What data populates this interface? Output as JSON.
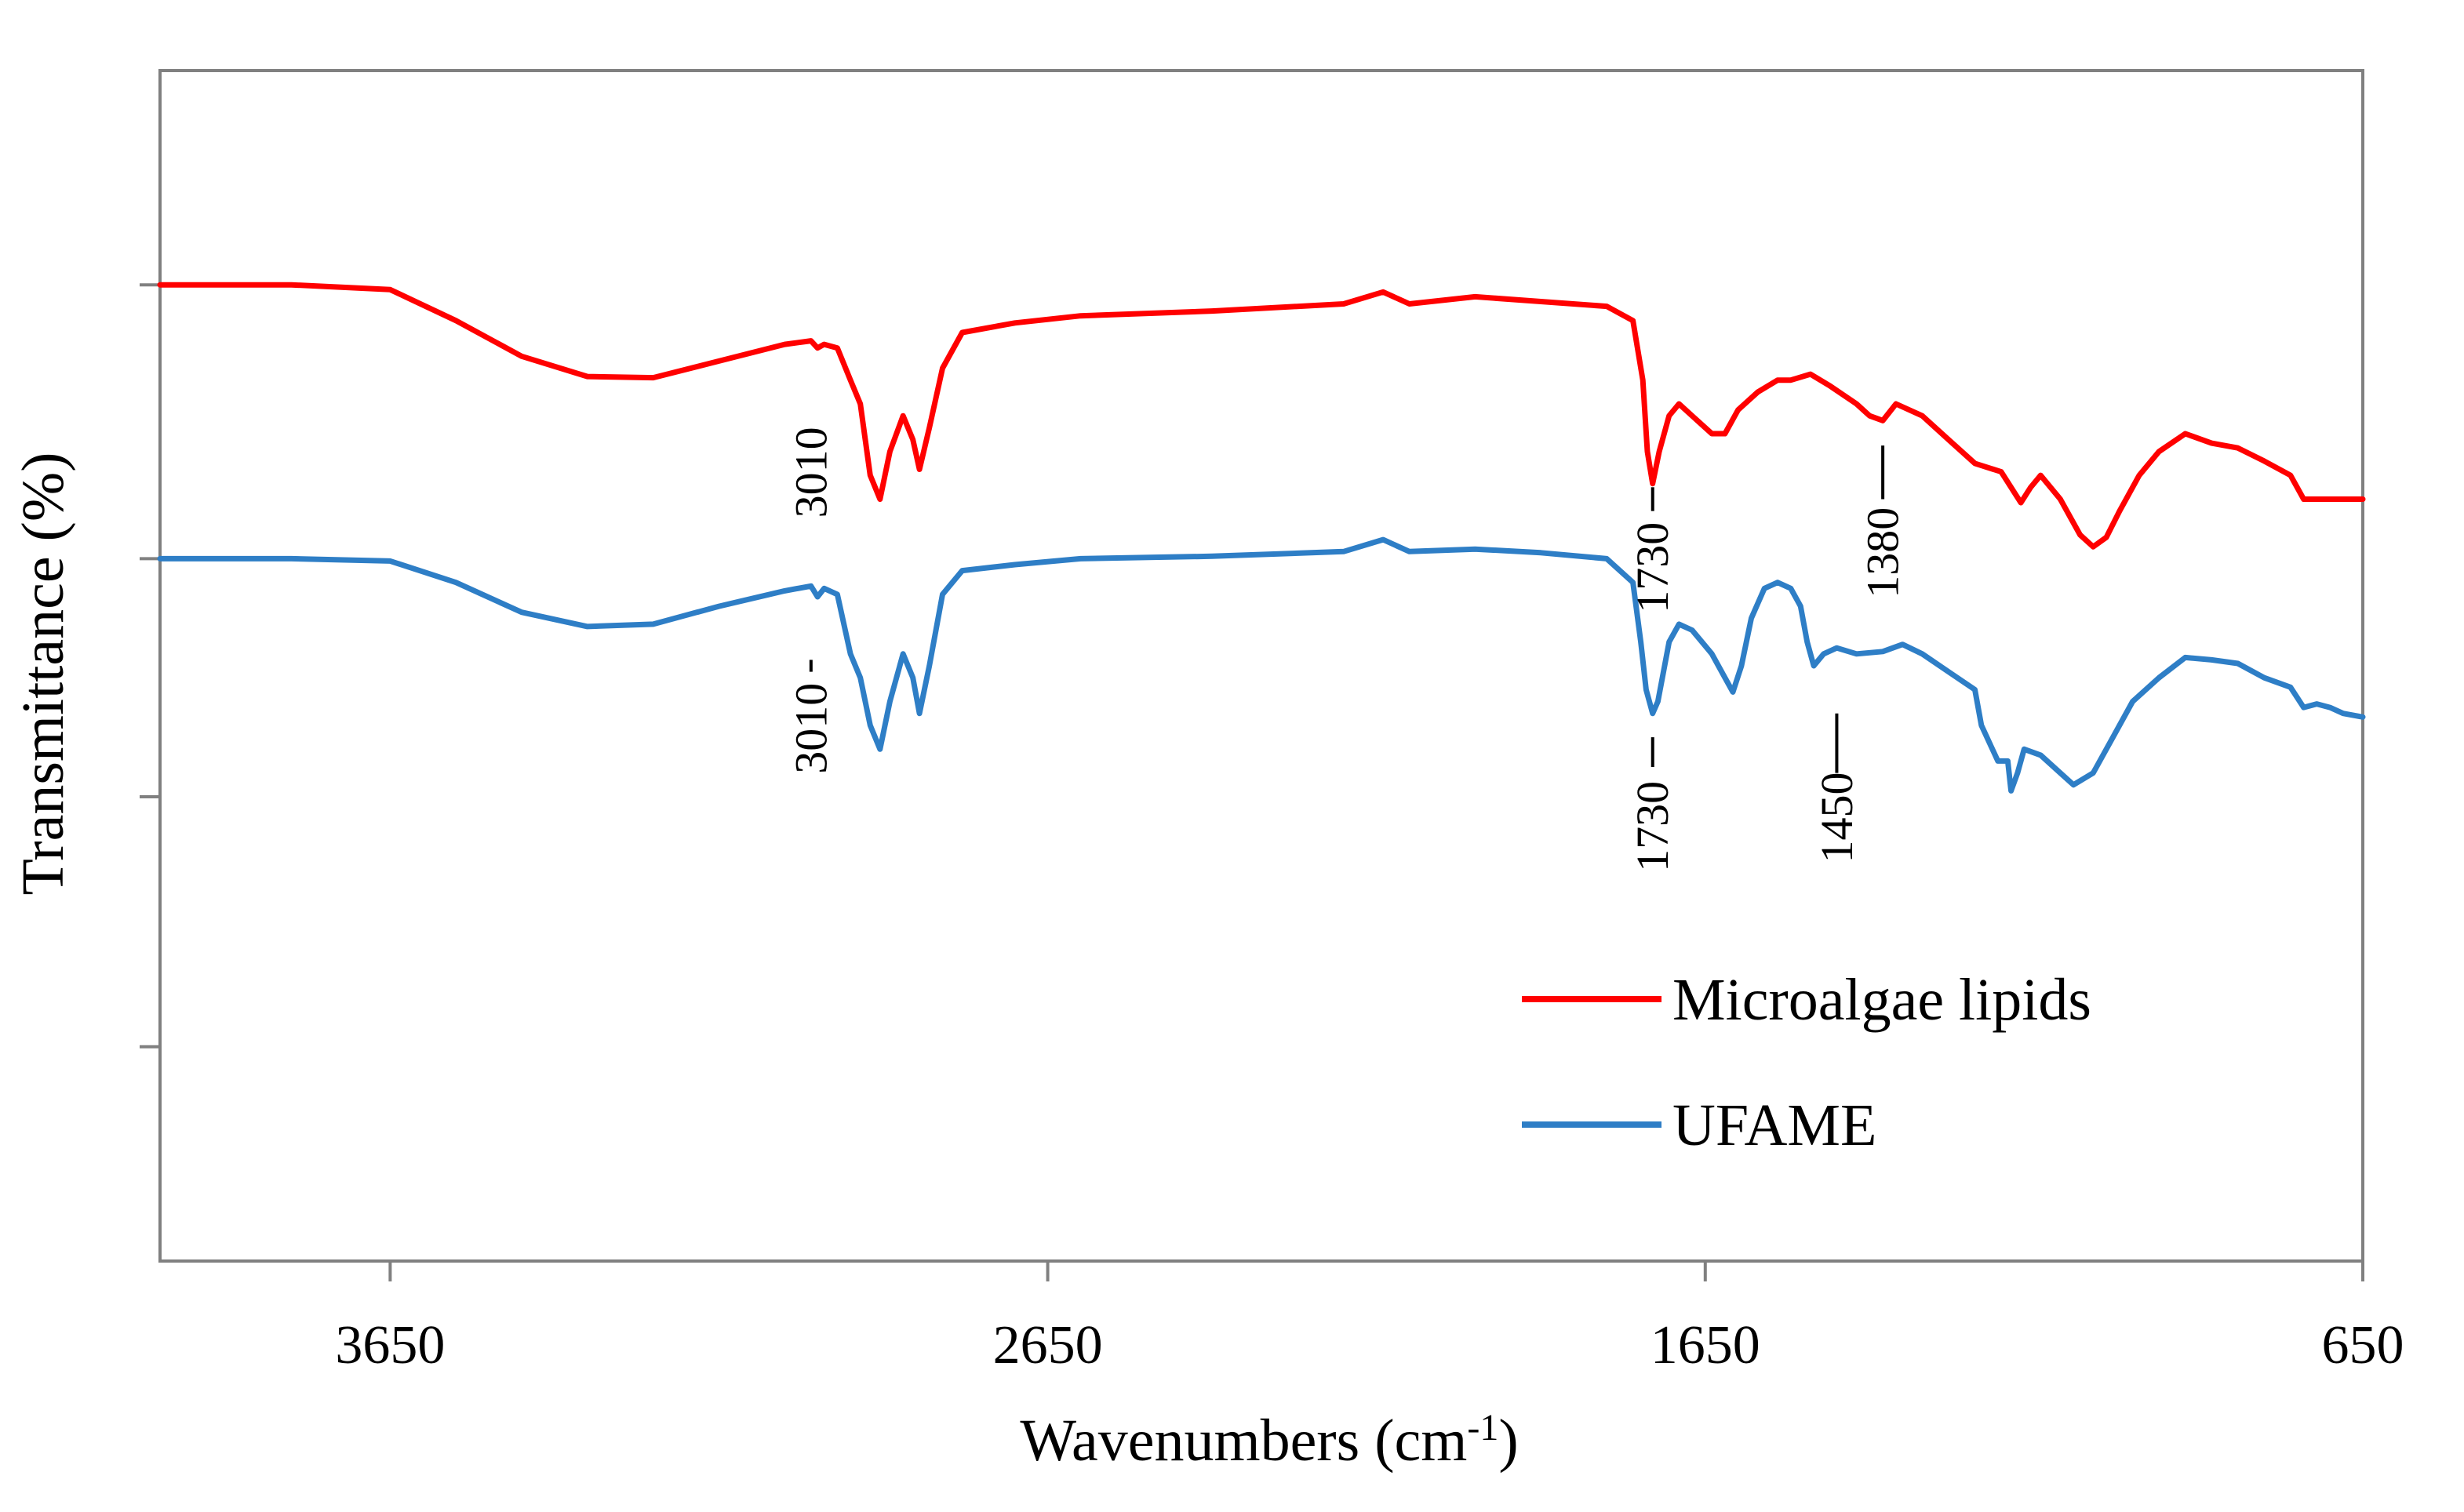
{
  "chart_data": {
    "type": "line",
    "title": "",
    "xlabel": "Wavenumbers (cm",
    "xlabel_sup": "-1",
    "xlabel_suffix": ")",
    "ylabel": "Transmittance (%)",
    "xlim": [
      4000,
      650
    ],
    "ylim": [
      0,
      100
    ],
    "x_ticks": [
      3650,
      2650,
      1650,
      650
    ],
    "x_tick_labels": [
      "3650",
      "2650",
      "1650",
      "650"
    ],
    "y_ticks": [
      18,
      39,
      59,
      82
    ],
    "y_tick_labels_visible": false,
    "grid": false,
    "legend_position": "bottom-right",
    "colors": {
      "red": "#ff0000",
      "blue": "#2e7ec6",
      "axis": "#808080"
    },
    "series": [
      {
        "name": "Microalgae lipids",
        "color": "#ff0000",
        "points": [
          [
            4000,
            82.0
          ],
          [
            3800,
            82.0
          ],
          [
            3650,
            81.6
          ],
          [
            3550,
            79.0
          ],
          [
            3450,
            76.0
          ],
          [
            3350,
            74.3
          ],
          [
            3250,
            74.2
          ],
          [
            3150,
            75.6
          ],
          [
            3050,
            77.0
          ],
          [
            3010,
            77.3
          ],
          [
            3000,
            76.7
          ],
          [
            2990,
            77.0
          ],
          [
            2970,
            76.7
          ],
          [
            2950,
            74.0
          ],
          [
            2935,
            72.0
          ],
          [
            2920,
            66.0
          ],
          [
            2905,
            64.0
          ],
          [
            2890,
            68.0
          ],
          [
            2870,
            71.0
          ],
          [
            2855,
            69.0
          ],
          [
            2845,
            66.5
          ],
          [
            2830,
            70.0
          ],
          [
            2810,
            75.0
          ],
          [
            2780,
            78.0
          ],
          [
            2700,
            78.8
          ],
          [
            2600,
            79.4
          ],
          [
            2400,
            79.8
          ],
          [
            2200,
            80.4
          ],
          [
            2140,
            81.4
          ],
          [
            2100,
            80.4
          ],
          [
            2000,
            81.0
          ],
          [
            1900,
            80.6
          ],
          [
            1800,
            80.2
          ],
          [
            1760,
            79.0
          ],
          [
            1745,
            74.0
          ],
          [
            1738,
            68.0
          ],
          [
            1730,
            65.3
          ],
          [
            1720,
            68.0
          ],
          [
            1705,
            71.0
          ],
          [
            1690,
            72.0
          ],
          [
            1670,
            71.0
          ],
          [
            1640,
            69.5
          ],
          [
            1620,
            69.5
          ],
          [
            1600,
            71.5
          ],
          [
            1570,
            73.0
          ],
          [
            1540,
            74.0
          ],
          [
            1520,
            74.0
          ],
          [
            1490,
            74.5
          ],
          [
            1460,
            73.5
          ],
          [
            1420,
            72.0
          ],
          [
            1400,
            71.0
          ],
          [
            1380,
            70.6
          ],
          [
            1360,
            72.0
          ],
          [
            1320,
            71.0
          ],
          [
            1280,
            69.0
          ],
          [
            1240,
            67.0
          ],
          [
            1200,
            66.3
          ],
          [
            1170,
            63.7
          ],
          [
            1155,
            65.0
          ],
          [
            1140,
            66.0
          ],
          [
            1110,
            64.0
          ],
          [
            1080,
            61.0
          ],
          [
            1060,
            60.0
          ],
          [
            1040,
            60.8
          ],
          [
            1020,
            63.0
          ],
          [
            990,
            66.0
          ],
          [
            960,
            68.0
          ],
          [
            920,
            69.5
          ],
          [
            880,
            68.7
          ],
          [
            840,
            68.3
          ],
          [
            800,
            67.2
          ],
          [
            760,
            66.0
          ],
          [
            740,
            64.0
          ],
          [
            700,
            64.0
          ],
          [
            680,
            64.0
          ],
          [
            650,
            64.0
          ]
        ]
      },
      {
        "name": "UFAME",
        "color": "#2e7ec6",
        "points": [
          [
            4000,
            59.0
          ],
          [
            3800,
            59.0
          ],
          [
            3650,
            58.8
          ],
          [
            3550,
            57.0
          ],
          [
            3450,
            54.5
          ],
          [
            3350,
            53.3
          ],
          [
            3250,
            53.5
          ],
          [
            3150,
            55.0
          ],
          [
            3050,
            56.3
          ],
          [
            3010,
            56.7
          ],
          [
            3000,
            55.8
          ],
          [
            2990,
            56.5
          ],
          [
            2970,
            56.0
          ],
          [
            2950,
            51.0
          ],
          [
            2935,
            49.0
          ],
          [
            2920,
            45.0
          ],
          [
            2905,
            43.0
          ],
          [
            2890,
            47.0
          ],
          [
            2870,
            51.0
          ],
          [
            2855,
            49.0
          ],
          [
            2845,
            46.0
          ],
          [
            2830,
            50.0
          ],
          [
            2810,
            56.0
          ],
          [
            2780,
            58.0
          ],
          [
            2700,
            58.5
          ],
          [
            2600,
            59.0
          ],
          [
            2400,
            59.2
          ],
          [
            2200,
            59.6
          ],
          [
            2140,
            60.6
          ],
          [
            2100,
            59.6
          ],
          [
            2000,
            59.8
          ],
          [
            1900,
            59.5
          ],
          [
            1800,
            59.0
          ],
          [
            1760,
            57.0
          ],
          [
            1748,
            52.0
          ],
          [
            1740,
            48.0
          ],
          [
            1730,
            46.0
          ],
          [
            1722,
            47.0
          ],
          [
            1705,
            52.0
          ],
          [
            1690,
            53.5
          ],
          [
            1670,
            53.0
          ],
          [
            1640,
            51.0
          ],
          [
            1620,
            49.0
          ],
          [
            1608,
            47.8
          ],
          [
            1595,
            50.0
          ],
          [
            1580,
            54.0
          ],
          [
            1560,
            56.5
          ],
          [
            1540,
            57.0
          ],
          [
            1520,
            56.5
          ],
          [
            1505,
            55.0
          ],
          [
            1495,
            52.0
          ],
          [
            1485,
            50.0
          ],
          [
            1470,
            51.0
          ],
          [
            1450,
            51.5
          ],
          [
            1420,
            51.0
          ],
          [
            1380,
            51.2
          ],
          [
            1350,
            51.8
          ],
          [
            1320,
            51.0
          ],
          [
            1280,
            49.5
          ],
          [
            1240,
            48.0
          ],
          [
            1230,
            45.0
          ],
          [
            1205,
            42.0
          ],
          [
            1190,
            42.0
          ],
          [
            1185,
            39.5
          ],
          [
            1175,
            41.0
          ],
          [
            1165,
            43.0
          ],
          [
            1140,
            42.5
          ],
          [
            1110,
            41.0
          ],
          [
            1090,
            40.0
          ],
          [
            1060,
            41.0
          ],
          [
            1030,
            44.0
          ],
          [
            1000,
            47.0
          ],
          [
            960,
            49.0
          ],
          [
            920,
            50.7
          ],
          [
            880,
            50.5
          ],
          [
            840,
            50.2
          ],
          [
            800,
            49.0
          ],
          [
            760,
            48.2
          ],
          [
            740,
            46.5
          ],
          [
            720,
            46.8
          ],
          [
            700,
            46.5
          ],
          [
            680,
            46.0
          ],
          [
            650,
            45.7
          ]
        ]
      }
    ],
    "annotations": [
      {
        "series": "Microalgae lipids",
        "x": 3010,
        "label": "3010",
        "tip_y": 71.0,
        "text_low": 61.5,
        "text_high": 71.0
      },
      {
        "series": "Microalgae lipids",
        "x": 1730,
        "label": "1730",
        "tip_y": 65.0,
        "text_low": 53.5,
        "text_high": 63.0
      },
      {
        "series": "Microalgae lipids",
        "x": 1380,
        "label": "1380",
        "tip_y": 68.5,
        "text_low": 55.0,
        "text_high": 64.0
      },
      {
        "series": "UFAME",
        "x": 3010,
        "label": "3010",
        "tip_y": 50.5,
        "text_low": 40.0,
        "text_high": 49.5
      },
      {
        "series": "UFAME",
        "x": 1730,
        "label": "1730",
        "tip_y": 44.0,
        "text_low": 31.5,
        "text_high": 41.5
      },
      {
        "series": "UFAME",
        "x": 1450,
        "label": "1450",
        "tip_y": 46.0,
        "text_low": 33.5,
        "text_high": 41.0
      }
    ]
  }
}
